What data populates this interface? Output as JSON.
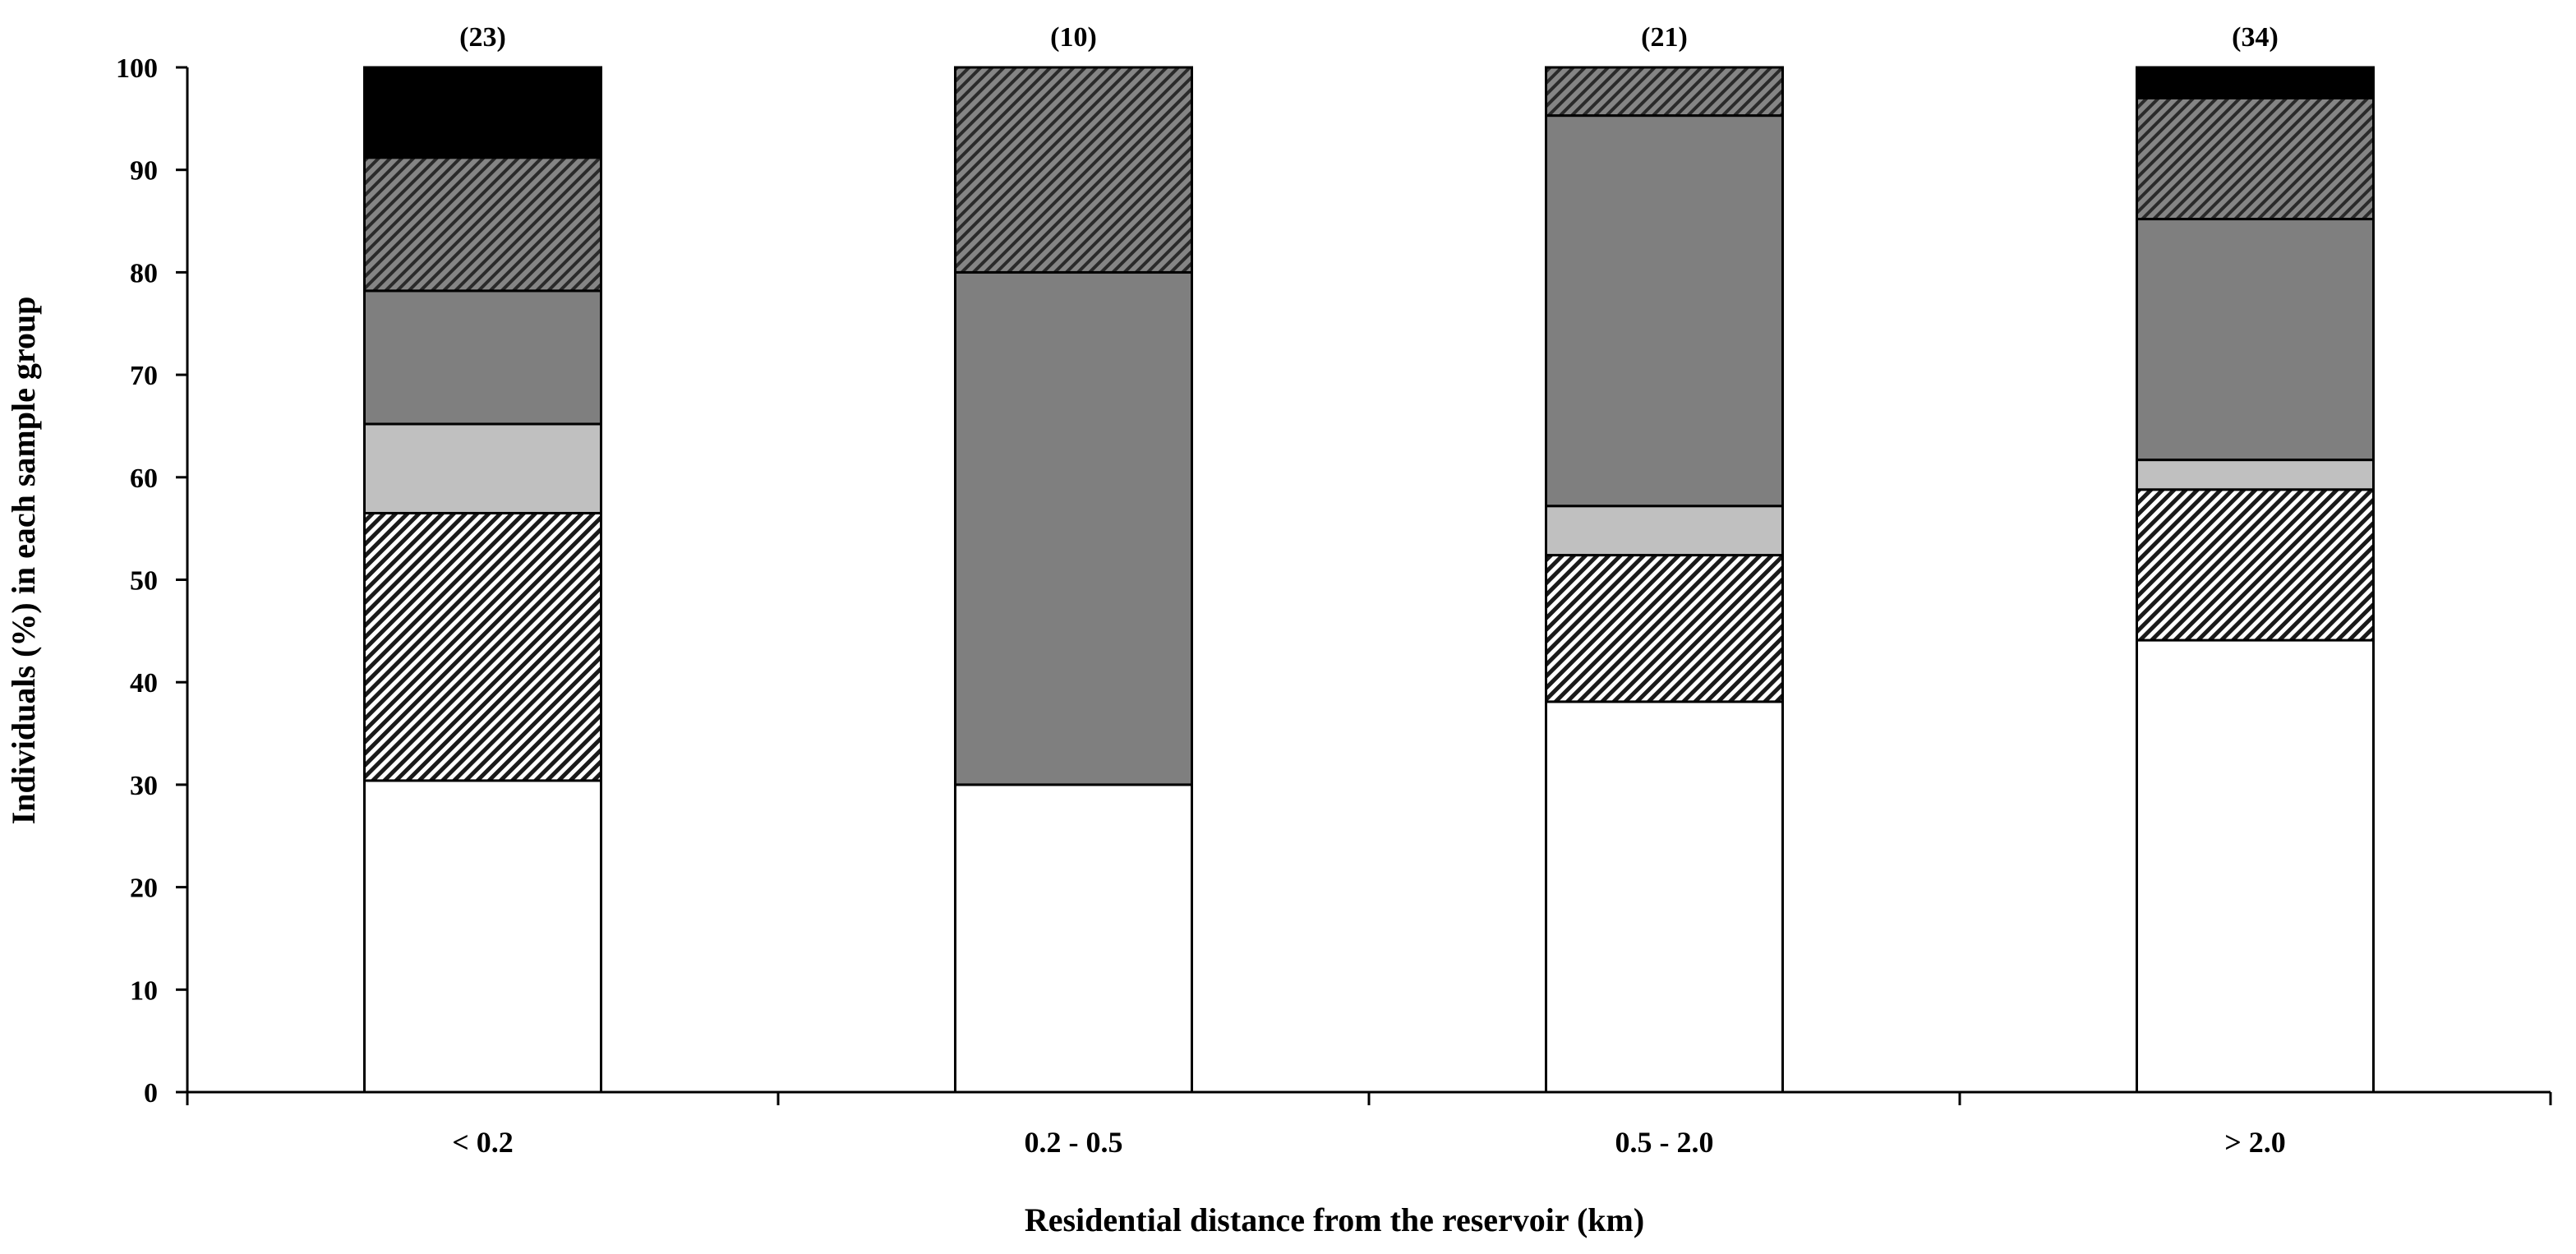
{
  "chart_data": {
    "type": "bar",
    "stacked": true,
    "categories": [
      "< 0.2",
      "0.2 - 0.5",
      "0.5 - 2.0",
      "> 2.0"
    ],
    "sample_sizes": [
      "(23)",
      "(10)",
      "(21)",
      "(34)"
    ],
    "xlabel": "Residential distance from the reservoir (km)",
    "ylabel": "Individuals (%) in each sample group",
    "ylim": [
      0,
      100
    ],
    "yticks": [
      "0",
      "10",
      "20",
      "30",
      "40",
      "50",
      "60",
      "70",
      "80",
      "90",
      "100"
    ],
    "grid": false,
    "legend": "none",
    "series": [
      {
        "fill": "#ffffff",
        "pattern": "solid",
        "values": [
          30.4,
          30.0,
          38.1,
          44.1
        ]
      },
      {
        "fill": "#ffffff",
        "pattern": "dense-diagonal-hatch",
        "values": [
          26.1,
          0.0,
          14.3,
          14.7
        ]
      },
      {
        "fill": "#c0c0c0",
        "pattern": "solid",
        "values": [
          8.7,
          0.0,
          4.8,
          2.9
        ]
      },
      {
        "fill": "#7f7f7f",
        "pattern": "solid",
        "values": [
          13.0,
          50.0,
          38.1,
          23.5
        ]
      },
      {
        "fill": "#7f7f7f",
        "pattern": "dark-diagonal-hatch",
        "values": [
          13.0,
          20.0,
          4.7,
          11.8
        ]
      },
      {
        "fill": "#000000",
        "pattern": "solid",
        "values": [
          8.8,
          0.0,
          0.0,
          3.0
        ]
      }
    ]
  }
}
